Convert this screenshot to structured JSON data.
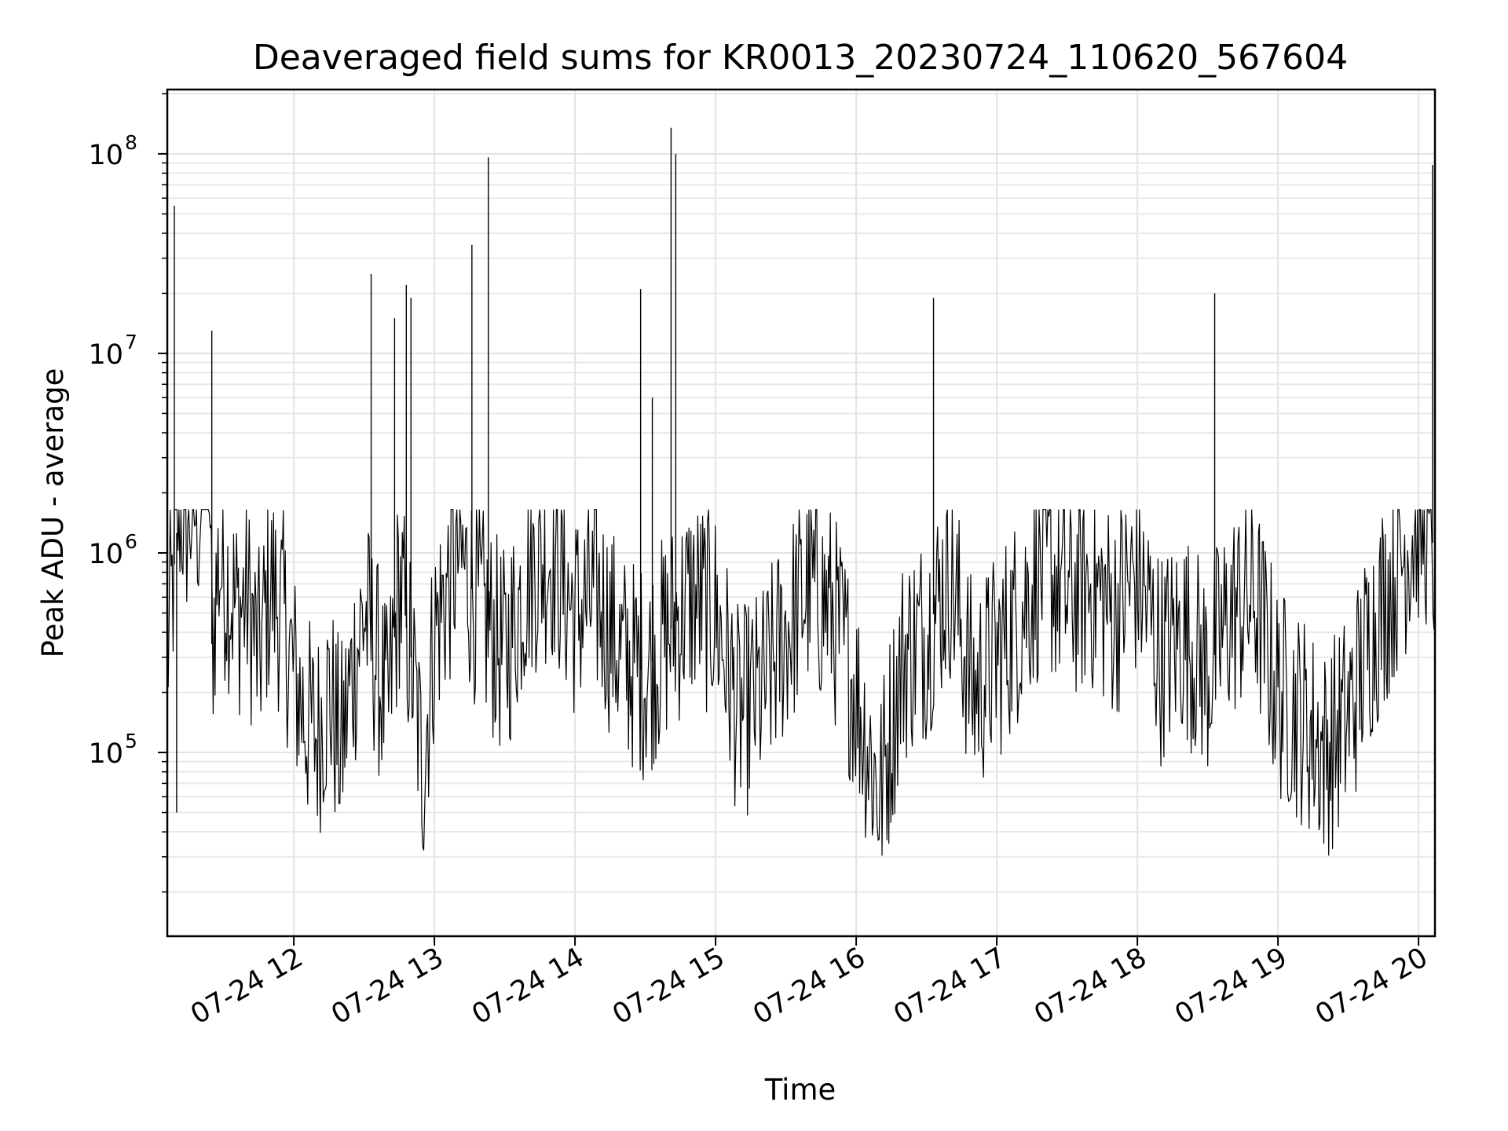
{
  "chart_data": {
    "type": "line",
    "title": "Deaveraged field sums for KR0013_20230724_110620_567604",
    "xlabel": "Time",
    "ylabel": "Peak ADU - average",
    "x_scale": "time",
    "y_scale": "log",
    "xlim": [
      "2023-07-24 11:06",
      "2023-07-24 20:07"
    ],
    "ylim": [
      12000,
      210000000
    ],
    "x_ticks": [
      "07-24 12",
      "07-24 13",
      "07-24 14",
      "07-24 15",
      "07-24 16",
      "07-24 17",
      "07-24 18",
      "07-24 19",
      "07-24 20"
    ],
    "y_ticks": [
      {
        "base": "10",
        "exp": "5",
        "value": 100000
      },
      {
        "base": "10",
        "exp": "6",
        "value": 1000000
      },
      {
        "base": "10",
        "exp": "7",
        "value": 10000000
      },
      {
        "base": "10",
        "exp": "8",
        "value": 100000000
      }
    ],
    "grid": true,
    "line_color": "#000000",
    "series": [
      {
        "x": [
          "11:06",
          "11:11",
          "11:14",
          "11:17",
          "11:20",
          "11:23",
          "11:25",
          "11:28",
          "11:32",
          "11:36",
          "11:40",
          "11:45",
          "11:50",
          "11:55",
          "12:00",
          "12:05",
          "12:10",
          "12:15",
          "12:20",
          "12:25",
          "12:30",
          "12:35",
          "12:40",
          "12:45",
          "12:50",
          "12:55",
          "13:00",
          "13:10",
          "13:20",
          "13:30",
          "13:40",
          "13:50",
          "14:00",
          "14:10",
          "14:20",
          "14:30",
          "14:40",
          "14:50",
          "15:00",
          "15:10",
          "15:20",
          "15:30",
          "15:40",
          "15:50",
          "16:00",
          "16:10",
          "16:20",
          "16:30",
          "16:40",
          "16:50",
          "17:00",
          "17:10",
          "17:20",
          "17:30",
          "17:40",
          "17:50",
          "18:00",
          "18:10",
          "18:20",
          "18:30",
          "18:40",
          "18:50",
          "19:00",
          "19:10",
          "19:20",
          "19:30",
          "19:40",
          "19:50",
          "20:00",
          "20:05",
          "20:07"
        ],
        "y": [
          300000,
          1800000,
          1500000,
          1700000,
          1600000,
          13000000,
          350000,
          900000,
          700000,
          500000,
          600000,
          300000,
          700000,
          500000,
          250000,
          150000,
          120000,
          200000,
          100000,
          250000,
          500000,
          300000,
          150000,
          700000,
          300000,
          80000,
          400000,
          1000000,
          500000,
          300000,
          800000,
          1000000,
          500000,
          600000,
          300000,
          250000,
          400000,
          600000,
          500000,
          150000,
          200000,
          400000,
          700000,
          500000,
          200000,
          60000,
          300000,
          400000,
          800000,
          200000,
          300000,
          500000,
          900000,
          600000,
          700000,
          500000,
          800000,
          300000,
          400000,
          250000,
          500000,
          600000,
          200000,
          150000,
          100000,
          150000,
          400000,
          800000,
          1500000,
          1400000,
          900000
        ]
      }
    ],
    "spikes": [
      {
        "x": "11:09",
        "y": 55000000
      },
      {
        "x": "11:10",
        "y": 50000
      },
      {
        "x": "11:25",
        "y": 13000000
      },
      {
        "x": "12:33",
        "y": 25000000
      },
      {
        "x": "12:43",
        "y": 15000000
      },
      {
        "x": "12:48",
        "y": 22000000
      },
      {
        "x": "12:50",
        "y": 19000000
      },
      {
        "x": "13:16",
        "y": 35000000
      },
      {
        "x": "13:23",
        "y": 96000000
      },
      {
        "x": "14:28",
        "y": 21000000
      },
      {
        "x": "14:33",
        "y": 6000000
      },
      {
        "x": "14:41",
        "y": 135000000
      },
      {
        "x": "14:43",
        "y": 100000000
      },
      {
        "x": "16:33",
        "y": 19000000
      },
      {
        "x": "18:33",
        "y": 20000000
      },
      {
        "x": "20:06",
        "y": 88000000
      }
    ]
  }
}
